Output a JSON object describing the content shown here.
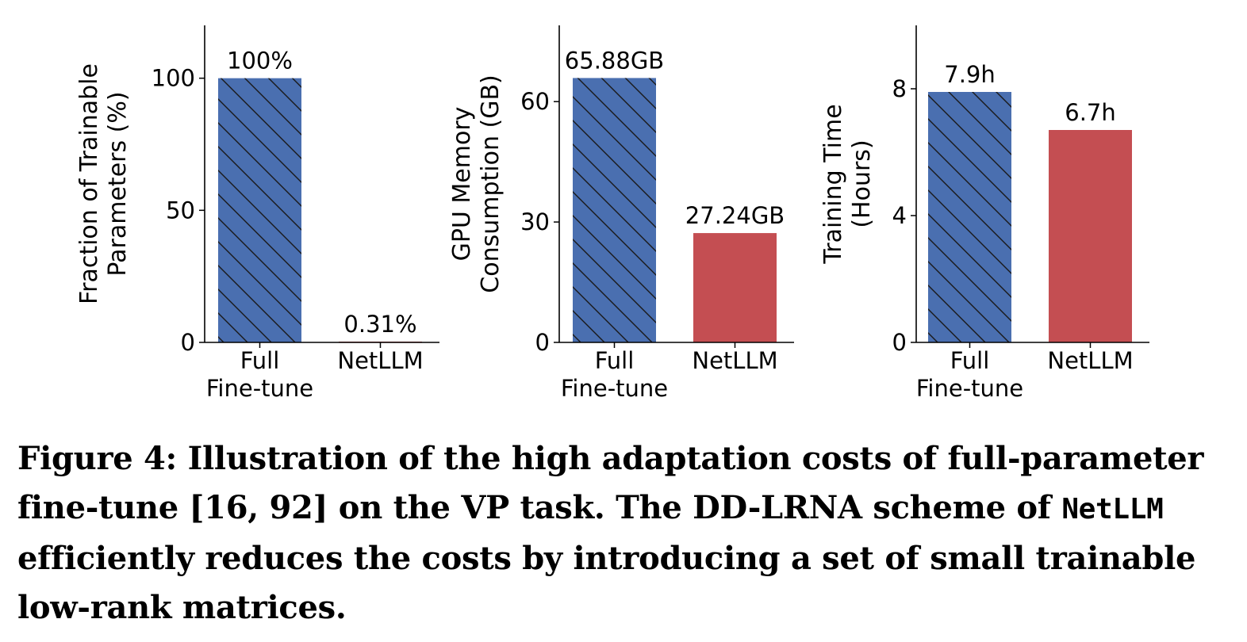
{
  "chart_data": [
    {
      "type": "bar",
      "ylabel": [
        "Fraction of Trainable",
        "Parameters (%)"
      ],
      "categories": [
        [
          "Full",
          "Fine-tune"
        ],
        [
          "NetLLM"
        ]
      ],
      "values": [
        100,
        0.31
      ],
      "data_labels": [
        "100%",
        "0.31%"
      ],
      "yticks": [
        0,
        50,
        100
      ],
      "ylim": [
        0,
        120
      ],
      "colors": [
        "#4a6fb0",
        "#c44e52"
      ],
      "hatch": [
        true,
        false
      ]
    },
    {
      "type": "bar",
      "ylabel": [
        "GPU Memory",
        "Consumption (GB)"
      ],
      "categories": [
        [
          "Full",
          "Fine-tune"
        ],
        [
          "NetLLM"
        ]
      ],
      "values": [
        65.88,
        27.24
      ],
      "data_labels": [
        "65.88GB",
        "27.24GB"
      ],
      "yticks": [
        0,
        30,
        60
      ],
      "ylim": [
        0,
        79
      ],
      "colors": [
        "#4a6fb0",
        "#c44e52"
      ],
      "hatch": [
        true,
        false
      ]
    },
    {
      "type": "bar",
      "ylabel": [
        "Training Time",
        "(Hours)"
      ],
      "categories": [
        [
          "Full",
          "Fine-tune"
        ],
        [
          "NetLLM"
        ]
      ],
      "values": [
        7.9,
        6.7
      ],
      "data_labels": [
        "7.9h",
        "6.7h"
      ],
      "yticks": [
        0,
        4,
        8
      ],
      "ylim": [
        0,
        10
      ],
      "colors": [
        "#4a6fb0",
        "#c44e52"
      ],
      "hatch": [
        true,
        false
      ]
    }
  ],
  "caption": {
    "part1": "Figure 4: Illustration of the high adaptation costs of full-parameter fine-tune [16, 92] on the VP task. The DD-LRNA scheme of ",
    "system": "NetLLM",
    "part2": " efficiently reduces the costs by introducing a set of small trainable low-rank matrices."
  }
}
